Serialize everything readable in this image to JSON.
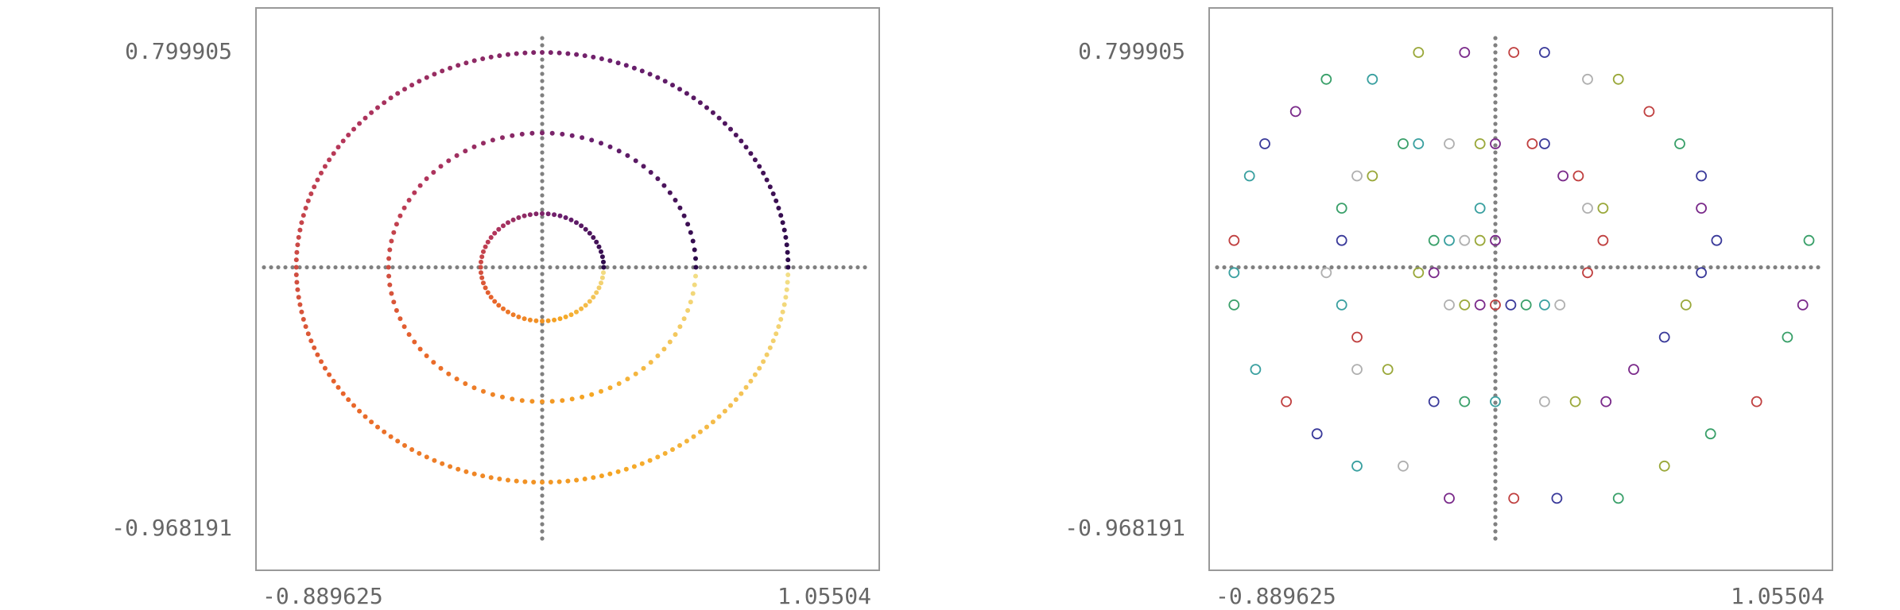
{
  "chart_data": [
    {
      "type": "scatter",
      "title": "",
      "xlabel": "",
      "ylabel": "",
      "xlim": [
        -0.889625,
        1.05504
      ],
      "ylim": [
        -0.968191,
        0.799905
      ],
      "x_tick_labels": [
        "-0.889625",
        "1.05504"
      ],
      "y_tick_labels": [
        "0.799905",
        "-0.968191"
      ],
      "grid": false,
      "legend": "none",
      "frame_color": "#999999",
      "axis_color": "#808080",
      "colormap": [
        "#2b0a4a",
        "#6b1f6e",
        "#b5365a",
        "#e8632a",
        "#f5a623",
        "#f2e089"
      ],
      "rings": [
        {
          "center": [
            0.0,
            0.0
          ],
          "radius": 0.2,
          "points": 64
        },
        {
          "center": [
            0.0,
            0.0
          ],
          "radius": 0.5,
          "points": 96
        },
        {
          "center": [
            0.0,
            0.0
          ],
          "radius": 0.8,
          "points": 180
        }
      ],
      "axis_lines": {
        "x0": 0.0,
        "y0": 0.0
      }
    },
    {
      "type": "scatter",
      "title": "",
      "xlabel": "",
      "ylabel": "",
      "xlim": [
        -0.889625,
        1.05504
      ],
      "ylim": [
        -0.968191,
        0.799905
      ],
      "x_tick_labels": [
        "-0.889625",
        "1.05504"
      ],
      "y_tick_labels": [
        "0.799905",
        "-0.968191"
      ],
      "grid": false,
      "legend": "none",
      "frame_color": "#999999",
      "axis_color": "#808080",
      "marker": "hollow-circle",
      "palette": [
        "#9aa83a",
        "#7a2a8a",
        "#c04040",
        "#3a3a9a",
        "#3aa06a",
        "#3aa0a0",
        "#b0b0b0"
      ],
      "axis_lines": {
        "x0": 0.0,
        "y0": 0.0
      },
      "points": [
        [
          -0.25,
          0.8
        ],
        [
          -0.1,
          0.8
        ],
        [
          0.06,
          0.8
        ],
        [
          0.16,
          0.8
        ],
        [
          -0.55,
          0.7
        ],
        [
          -0.4,
          0.7
        ],
        [
          0.3,
          0.7
        ],
        [
          0.4,
          0.7
        ],
        [
          -0.65,
          0.58
        ],
        [
          0.5,
          0.58
        ],
        [
          -0.75,
          0.46
        ],
        [
          -0.3,
          0.46
        ],
        [
          -0.25,
          0.46
        ],
        [
          -0.15,
          0.46
        ],
        [
          -0.05,
          0.46
        ],
        [
          0.0,
          0.46
        ],
        [
          0.12,
          0.46
        ],
        [
          0.16,
          0.46
        ],
        [
          0.6,
          0.46
        ],
        [
          -0.8,
          0.34
        ],
        [
          -0.45,
          0.34
        ],
        [
          -0.4,
          0.34
        ],
        [
          0.22,
          0.34
        ],
        [
          0.27,
          0.34
        ],
        [
          0.67,
          0.34
        ],
        [
          -0.5,
          0.22
        ],
        [
          -0.05,
          0.22
        ],
        [
          0.3,
          0.22
        ],
        [
          0.35,
          0.22
        ],
        [
          0.67,
          0.22
        ],
        [
          -0.85,
          0.1
        ],
        [
          -0.5,
          0.1
        ],
        [
          -0.2,
          0.1
        ],
        [
          -0.15,
          0.1
        ],
        [
          -0.1,
          0.1
        ],
        [
          -0.05,
          0.1
        ],
        [
          0.0,
          0.1
        ],
        [
          0.35,
          0.1
        ],
        [
          0.72,
          0.1
        ],
        [
          1.02,
          0.1
        ],
        [
          -0.85,
          -0.02
        ],
        [
          -0.55,
          -0.02
        ],
        [
          -0.25,
          -0.02
        ],
        [
          -0.2,
          -0.02
        ],
        [
          0.3,
          -0.02
        ],
        [
          0.67,
          -0.02
        ],
        [
          -0.85,
          -0.14
        ],
        [
          -0.5,
          -0.14
        ],
        [
          -0.15,
          -0.14
        ],
        [
          -0.1,
          -0.14
        ],
        [
          -0.05,
          -0.14
        ],
        [
          0.0,
          -0.14
        ],
        [
          0.05,
          -0.14
        ],
        [
          0.1,
          -0.14
        ],
        [
          0.16,
          -0.14
        ],
        [
          0.21,
          -0.14
        ],
        [
          0.62,
          -0.14
        ],
        [
          1.0,
          -0.14
        ],
        [
          -0.45,
          -0.26
        ],
        [
          0.55,
          -0.26
        ],
        [
          0.95,
          -0.26
        ],
        [
          -0.78,
          -0.38
        ],
        [
          -0.45,
          -0.38
        ],
        [
          -0.35,
          -0.38
        ],
        [
          0.45,
          -0.38
        ],
        [
          -0.68,
          -0.5
        ],
        [
          -0.2,
          -0.5
        ],
        [
          -0.1,
          -0.5
        ],
        [
          0.0,
          -0.5
        ],
        [
          0.16,
          -0.5
        ],
        [
          0.26,
          -0.5
        ],
        [
          0.36,
          -0.5
        ],
        [
          0.85,
          -0.5
        ],
        [
          -0.58,
          -0.62
        ],
        [
          0.7,
          -0.62
        ],
        [
          -0.45,
          -0.74
        ],
        [
          -0.3,
          -0.74
        ],
        [
          0.55,
          -0.74
        ],
        [
          -0.15,
          -0.86
        ],
        [
          0.06,
          -0.86
        ],
        [
          0.2,
          -0.86
        ],
        [
          0.4,
          -0.86
        ]
      ]
    }
  ]
}
